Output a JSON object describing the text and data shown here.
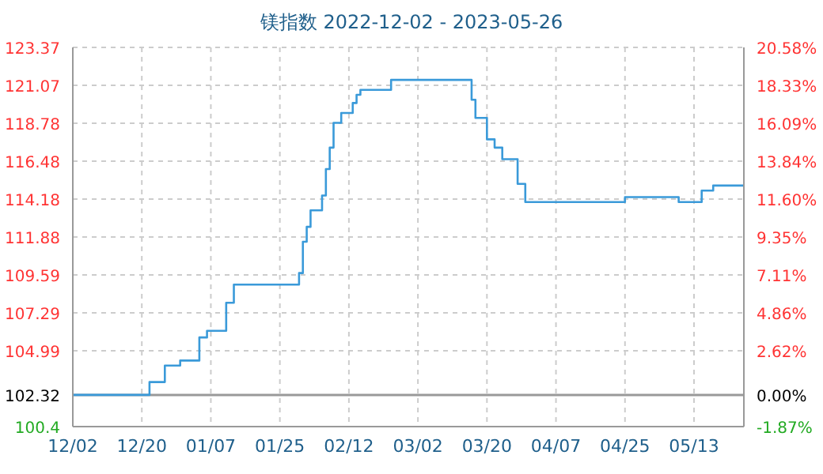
{
  "chart_data": {
    "type": "step",
    "title": "镁指数 2022-12-02 - 2023-05-26",
    "x": [
      "2022-12-02",
      "2022-12-22",
      "2022-12-26",
      "2022-12-30",
      "2023-01-04",
      "2023-01-06",
      "2023-01-11",
      "2023-01-13",
      "2023-01-30",
      "2023-01-31",
      "2023-02-01",
      "2023-02-02",
      "2023-02-05",
      "2023-02-06",
      "2023-02-07",
      "2023-02-08",
      "2023-02-10",
      "2023-02-13",
      "2023-02-14",
      "2023-02-15",
      "2023-02-23",
      "2023-03-16",
      "2023-03-17",
      "2023-03-20",
      "2023-03-22",
      "2023-03-24",
      "2023-03-28",
      "2023-03-30",
      "2023-04-25",
      "2023-05-09",
      "2023-05-15",
      "2023-05-18",
      "2023-05-26"
    ],
    "series": [
      {
        "color": "#3a9ad9",
        "values": [
          102.32,
          103.1,
          104.1,
          104.4,
          105.8,
          106.2,
          107.9,
          109.0,
          109.7,
          111.6,
          112.5,
          113.5,
          114.4,
          116.0,
          117.3,
          118.8,
          119.4,
          120.0,
          120.5,
          120.8,
          121.4,
          120.2,
          119.1,
          117.8,
          117.3,
          116.6,
          115.1,
          114.0,
          114.3,
          114.0,
          114.7,
          115.0,
          115.0
        ]
      }
    ],
    "xlim": [
      "2022-12-02",
      "2023-05-26"
    ],
    "xticks": [
      {
        "value": "2022-12-02",
        "label": "12/02"
      },
      {
        "value": "2022-12-20",
        "label": "12/20"
      },
      {
        "value": "2023-01-07",
        "label": "01/07"
      },
      {
        "value": "2023-01-25",
        "label": "01/25"
      },
      {
        "value": "2023-02-12",
        "label": "02/12"
      },
      {
        "value": "2023-03-02",
        "label": "03/02"
      },
      {
        "value": "2023-03-20",
        "label": "03/20"
      },
      {
        "value": "2023-04-07",
        "label": "04/07"
      },
      {
        "value": "2023-04-25",
        "label": "04/25"
      },
      {
        "value": "2023-05-13",
        "label": "05/13"
      }
    ],
    "ylim": [
      100.4,
      123.37
    ],
    "yticks": [
      100.4,
      102.32,
      104.99,
      107.29,
      109.59,
      111.88,
      114.18,
      116.48,
      118.78,
      121.07,
      123.37
    ],
    "y2lim": [
      -1.87,
      20.58
    ],
    "y2ticks": [
      {
        "value": -1.87,
        "label": "-1.87%"
      },
      {
        "value": 0,
        "label": "0.00%"
      },
      {
        "value": 2.62,
        "label": "2.62%"
      },
      {
        "value": 4.86,
        "label": "4.86%"
      },
      {
        "value": 7.11,
        "label": "7.11%"
      },
      {
        "value": 9.35,
        "label": "9.35%"
      },
      {
        "value": 11.6,
        "label": "11.60%"
      },
      {
        "value": 13.84,
        "label": "13.84%"
      },
      {
        "value": 16.09,
        "label": "16.09%"
      },
      {
        "value": 18.33,
        "label": "18.33%"
      },
      {
        "value": 20.58,
        "label": "20.58%"
      }
    ],
    "ref_lines": [
      {
        "axis": "y",
        "value": 102.32,
        "color": "#999999"
      }
    ],
    "grid": true,
    "legend": false
  }
}
